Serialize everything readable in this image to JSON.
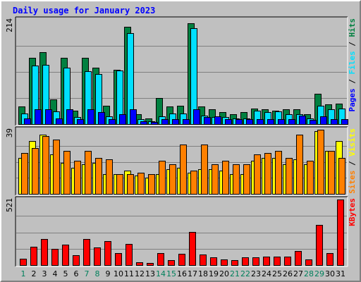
{
  "title": "Daily usage for January 2023",
  "chart_data": [
    {
      "type": "bar",
      "title": "Hits / Files / Pages",
      "x": [
        "1",
        "2",
        "3",
        "4",
        "5",
        "6",
        "7",
        "8",
        "9",
        "10",
        "11",
        "12",
        "13",
        "14",
        "15",
        "16",
        "17",
        "18",
        "19",
        "20",
        "21",
        "22",
        "23",
        "24",
        "25",
        "26",
        "27",
        "28",
        "29",
        "30",
        "31"
      ],
      "weekend_days": [
        "1",
        "7",
        "8",
        "14",
        "15",
        "21",
        "22",
        "28",
        "29"
      ],
      "max_label": "214",
      "ylim": [
        0,
        214
      ],
      "series": [
        {
          "name": "Hits",
          "color": "#008040",
          "values": [
            36,
            136,
            148,
            50,
            136,
            28,
            136,
            116,
            38,
            112,
            200,
            20,
            12,
            54,
            36,
            38,
            207,
            36,
            30,
            24,
            20,
            24,
            32,
            30,
            28,
            30,
            30,
            20,
            62,
            40,
            42
          ]
        },
        {
          "name": "Files",
          "color": "#00e0ff",
          "values": [
            22,
            120,
            122,
            26,
            116,
            14,
            108,
            102,
            16,
            110,
            186,
            10,
            6,
            16,
            22,
            22,
            197,
            18,
            14,
            14,
            12,
            12,
            28,
            24,
            26,
            20,
            20,
            12,
            38,
            30,
            32
          ]
        },
        {
          "name": "Pages",
          "color": "#0000ff",
          "values": [
            12,
            30,
            30,
            12,
            30,
            10,
            30,
            24,
            10,
            20,
            30,
            6,
            4,
            10,
            10,
            10,
            30,
            14,
            16,
            10,
            10,
            10,
            10,
            10,
            10,
            10,
            18,
            8,
            16,
            10,
            10
          ]
        }
      ]
    },
    {
      "type": "bar",
      "title": "Visits / Sites",
      "x": [
        "1",
        "2",
        "3",
        "4",
        "5",
        "6",
        "7",
        "8",
        "9",
        "10",
        "11",
        "12",
        "13",
        "14",
        "15",
        "16",
        "17",
        "18",
        "19",
        "20",
        "21",
        "22",
        "23",
        "24",
        "25",
        "26",
        "27",
        "28",
        "29",
        "30",
        "31"
      ],
      "max_label": "39",
      "ylim": [
        0,
        39
      ],
      "series": [
        {
          "name": "Visits",
          "color": "#ffff00",
          "values": [
            22,
            32,
            36,
            24,
            19,
            16,
            18,
            19,
            12,
            12,
            14,
            11,
            10,
            12,
            15,
            16,
            13,
            15,
            15,
            14,
            12,
            12,
            20,
            22,
            22,
            18,
            21,
            18,
            38,
            26,
            32
          ]
        },
        {
          "name": "Sites",
          "color": "#ff8000",
          "values": [
            25,
            28,
            35,
            33,
            26,
            20,
            26,
            22,
            21,
            12,
            12,
            13,
            12,
            20,
            18,
            30,
            14,
            30,
            18,
            20,
            18,
            18,
            24,
            25,
            26,
            22,
            36,
            20,
            39,
            26,
            22
          ]
        }
      ]
    },
    {
      "type": "bar",
      "title": "KBytes",
      "x": [
        "1",
        "2",
        "3",
        "4",
        "5",
        "6",
        "7",
        "8",
        "9",
        "10",
        "11",
        "12",
        "13",
        "14",
        "15",
        "16",
        "17",
        "18",
        "19",
        "20",
        "21",
        "22",
        "23",
        "24",
        "25",
        "26",
        "27",
        "28",
        "29",
        "30",
        "31"
      ],
      "max_label": "521",
      "ylim": [
        0,
        521
      ],
      "series": [
        {
          "name": "KBytes",
          "color": "#ff0000",
          "values": [
            52,
            147,
            210,
            128,
            164,
            77,
            207,
            142,
            193,
            93,
            168,
            20,
            17,
            93,
            40,
            87,
            266,
            84,
            61,
            43,
            40,
            61,
            61,
            69,
            67,
            69,
            110,
            43,
            321,
            93,
            521
          ]
        }
      ]
    }
  ]
}
